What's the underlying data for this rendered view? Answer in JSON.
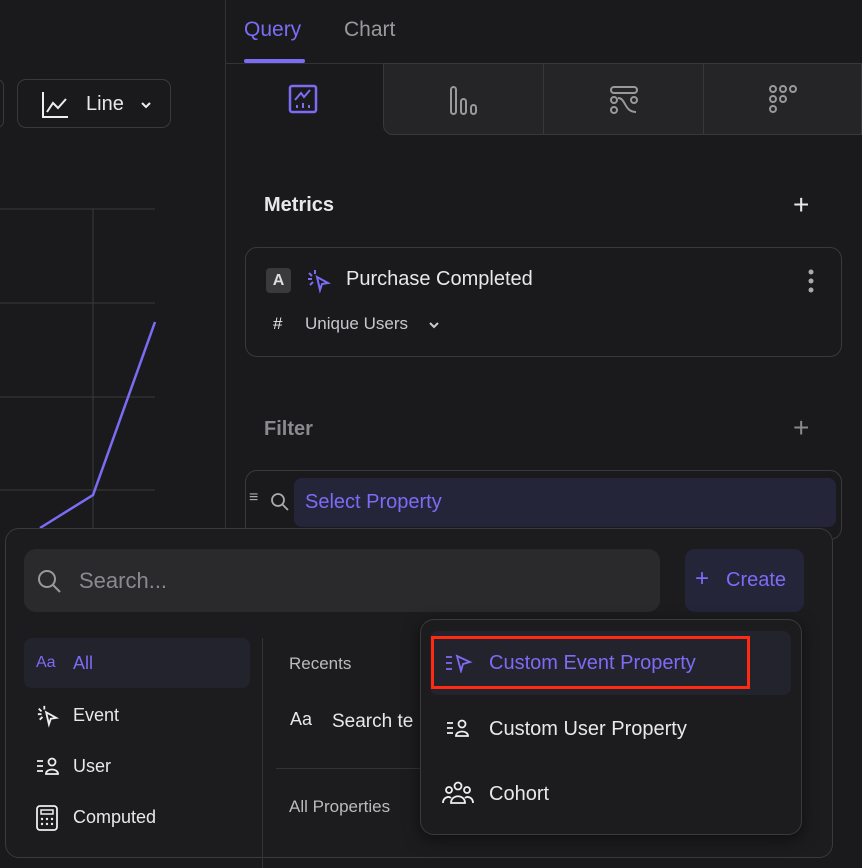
{
  "chart": {
    "type_button": "Line",
    "accent": "#7b6cf6"
  },
  "tabs": [
    {
      "label": "Query",
      "active": true
    },
    {
      "label": "Chart",
      "active": false
    }
  ],
  "viz_tabs": [
    {
      "icon": "insights-icon",
      "active": true
    },
    {
      "icon": "funnel-icon"
    },
    {
      "icon": "flows-icon"
    },
    {
      "icon": "retention-icon"
    }
  ],
  "metrics": {
    "title": "Metrics",
    "item": {
      "badge": "A",
      "name": "Purchase Completed",
      "measure_symbol": "#",
      "measure": "Unique Users"
    }
  },
  "filter": {
    "title": "Filter",
    "select_label": "Select Property"
  },
  "popup": {
    "search_placeholder": "Search...",
    "create_label": "Create",
    "categories": [
      {
        "icon": "Aa",
        "label": "All",
        "active": true
      },
      {
        "label": "Event"
      },
      {
        "label": "User"
      },
      {
        "label": "Computed"
      }
    ],
    "recents_title": "Recents",
    "recent_item": "Search te",
    "all_properties_title": "All Properties",
    "create_menu": [
      "Custom Event Property",
      "Custom User Property",
      "Cohort"
    ]
  },
  "colors": {
    "accent": "#7b6cf6",
    "highlight": "#ff2a12",
    "panel": "#1a1a1c"
  }
}
